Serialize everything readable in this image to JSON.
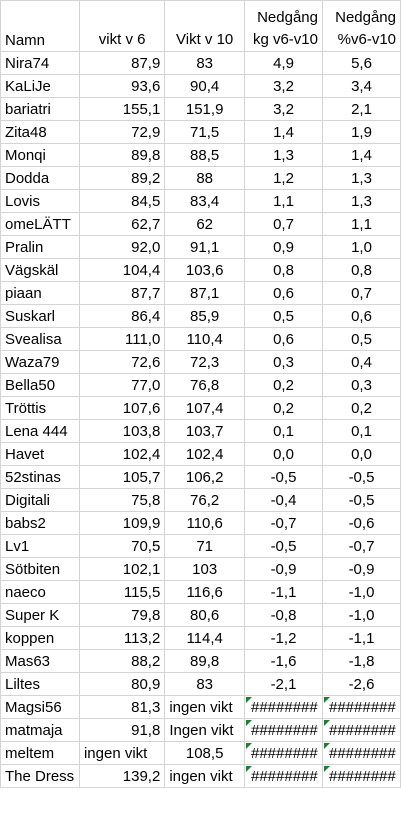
{
  "headers": {
    "name": "Namn",
    "w6": "vikt v 6",
    "w10": "Vikt v 10",
    "kg_line1": "Nedgång",
    "kg_line2": "kg v6-v10",
    "pct_line1": "Nedgång",
    "pct_line2": "%v6-v10"
  },
  "rows": [
    {
      "name": "Nira74",
      "w6": "87,9",
      "w10": "83",
      "kg": "4,9",
      "pct": "5,6"
    },
    {
      "name": "KaLiJe",
      "w6": "93,6",
      "w10": "90,4",
      "kg": "3,2",
      "pct": "3,4"
    },
    {
      "name": "bariatri",
      "w6": "155,1",
      "w10": "151,9",
      "kg": "3,2",
      "pct": "2,1"
    },
    {
      "name": "Zita48",
      "w6": "72,9",
      "w10": "71,5",
      "kg": "1,4",
      "pct": "1,9"
    },
    {
      "name": "Monqi",
      "w6": "89,8",
      "w10": "88,5",
      "kg": "1,3",
      "pct": "1,4"
    },
    {
      "name": "Dodda",
      "w6": "89,2",
      "w10": "88",
      "kg": "1,2",
      "pct": "1,3"
    },
    {
      "name": "Lovis",
      "w6": "84,5",
      "w10": "83,4",
      "kg": "1,1",
      "pct": "1,3"
    },
    {
      "name": "omeLÄTT",
      "w6": "62,7",
      "w10": "62",
      "kg": "0,7",
      "pct": "1,1"
    },
    {
      "name": "Pralin",
      "w6": "92,0",
      "w10": "91,1",
      "kg": "0,9",
      "pct": "1,0"
    },
    {
      "name": "Vägskäl",
      "w6": "104,4",
      "w10": "103,6",
      "kg": "0,8",
      "pct": "0,8"
    },
    {
      "name": "piaan",
      "w6": "87,7",
      "w10": "87,1",
      "kg": "0,6",
      "pct": "0,7"
    },
    {
      "name": "Suskarl",
      "w6": "86,4",
      "w10": "85,9",
      "kg": "0,5",
      "pct": "0,6"
    },
    {
      "name": "Svealisa",
      "w6": "111,0",
      "w10": "110,4",
      "kg": "0,6",
      "pct": "0,5"
    },
    {
      "name": "Waza79",
      "w6": "72,6",
      "w10": "72,3",
      "kg": "0,3",
      "pct": "0,4"
    },
    {
      "name": "Bella50",
      "w6": "77,0",
      "w10": "76,8",
      "kg": "0,2",
      "pct": "0,3"
    },
    {
      "name": "Tröttis",
      "w6": "107,6",
      "w10": "107,4",
      "kg": "0,2",
      "pct": "0,2"
    },
    {
      "name": "Lena 444",
      "w6": "103,8",
      "w10": "103,7",
      "kg": "0,1",
      "pct": "0,1"
    },
    {
      "name": "Havet",
      "w6": "102,4",
      "w10": "102,4",
      "kg": "0,0",
      "pct": "0,0"
    },
    {
      "name": "52stinas",
      "w6": "105,7",
      "w10": "106,2",
      "kg": "-0,5",
      "pct": "-0,5"
    },
    {
      "name": "Digitali",
      "w6": "75,8",
      "w10": "76,2",
      "kg": "-0,4",
      "pct": "-0,5"
    },
    {
      "name": "babs2",
      "w6": "109,9",
      "w10": "110,6",
      "kg": "-0,7",
      "pct": "-0,6"
    },
    {
      "name": "Lv1",
      "w6": "70,5",
      "w10": "71",
      "kg": "-0,5",
      "pct": "-0,7"
    },
    {
      "name": "Sötbiten",
      "w6": "102,1",
      "w10": "103",
      "kg": "-0,9",
      "pct": "-0,9"
    },
    {
      "name": "naeco",
      "w6": "115,5",
      "w10": "116,6",
      "kg": "-1,1",
      "pct": "-1,0"
    },
    {
      "name": "Super K",
      "w6": "79,8",
      "w10": "80,6",
      "kg": "-0,8",
      "pct": "-1,0"
    },
    {
      "name": "koppen",
      "w6": "113,2",
      "w10": "114,4",
      "kg": "-1,2",
      "pct": "-1,1"
    },
    {
      "name": "Mas63",
      "w6": "88,2",
      "w10": "89,8",
      "kg": "-1,6",
      "pct": "-1,8"
    },
    {
      "name": "Liltes",
      "w6": "80,9",
      "w10": "83",
      "kg": "-2,1",
      "pct": "-2,6"
    }
  ],
  "special_rows": [
    {
      "name": "Magsi56",
      "w6": "81,3",
      "w10": "ingen vikt",
      "kg": "########",
      "pct": "########"
    },
    {
      "name": "matmaja",
      "w6": "91,8",
      "w10": "Ingen vikt",
      "kg": "########",
      "pct": "########"
    },
    {
      "name": "meltem",
      "w6": "ingen vikt",
      "w10": "108,5",
      "kg": "########",
      "pct": "########"
    },
    {
      "name": "The Dress",
      "w6": "139,2",
      "w10": "ingen vikt",
      "kg": "########",
      "pct": "########"
    }
  ],
  "colors": {
    "grid": "#d4d4d4",
    "error_marker": "#1e7e34"
  }
}
